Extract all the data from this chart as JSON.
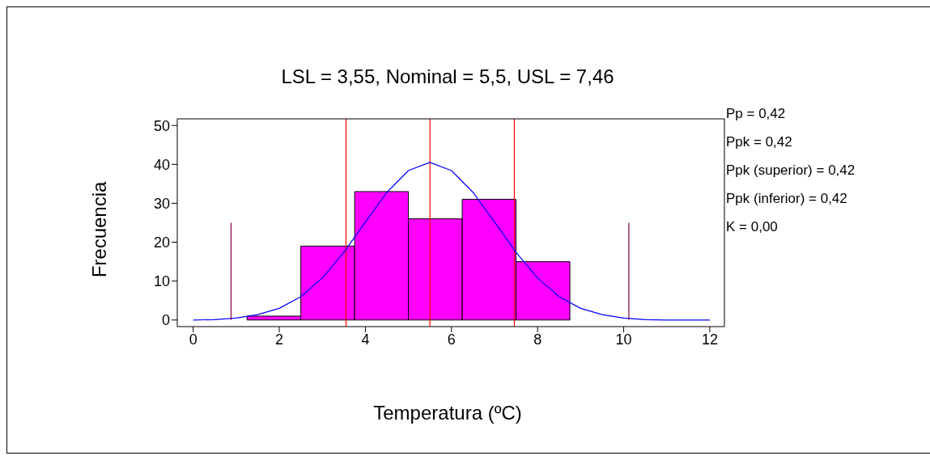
{
  "chart_data": {
    "type": "histogram",
    "title": "LSL = 3,55, Nominal = 5,5, USL = 7,46",
    "xlabel": "Temperatura (ºC)",
    "ylabel": "Frecuencia",
    "bins": [
      1.25,
      2.5,
      3.75,
      5,
      6.25,
      7.5,
      8.75
    ],
    "values": [
      1,
      19,
      33,
      26,
      31,
      15
    ],
    "color": "#ff00ff",
    "series": [
      {
        "type": "line",
        "color": "#0000ff",
        "x": [
          0,
          0.5,
          1,
          1.5,
          2,
          2.5,
          3,
          3.5,
          4,
          4.5,
          5,
          5.5,
          6,
          6.5,
          7,
          7.5,
          8,
          8.5,
          9,
          9.5,
          10,
          10.5,
          11,
          11.5,
          12
        ],
        "values": [
          0,
          0.1,
          0.5,
          1.4,
          3,
          6,
          10.8,
          17.4,
          25.2,
          32.8,
          38.4,
          40.5,
          38.4,
          32.8,
          25.2,
          17.4,
          10.8,
          6,
          3,
          1.4,
          0.5,
          0.1,
          0,
          0,
          0
        ]
      },
      {
        "type": "line",
        "color": "#800040",
        "x": [
          0.88,
          0.88
        ],
        "values": [
          0,
          25
        ]
      },
      {
        "type": "line",
        "color": "#800040",
        "x": [
          10.12,
          10.12
        ],
        "values": [
          0,
          25
        ]
      }
    ],
    "ref_lines": [
      {
        "axis": "x",
        "value": 3.55,
        "color": "#ff0000"
      },
      {
        "axis": "x",
        "value": 5.5,
        "color": "#ff0000"
      },
      {
        "axis": "x",
        "value": 7.46,
        "color": "#ff0000"
      }
    ],
    "xlim": [
      -0.37,
      12.34
    ],
    "xticks": [
      0,
      2,
      4,
      6,
      8,
      10,
      12
    ],
    "ylim": [
      -1.7,
      51.7
    ],
    "yticks": [
      0,
      10,
      20,
      30,
      40,
      50
    ],
    "grid": false,
    "legend": false,
    "annotations": [
      "Pp = 0,42",
      "Ppk = 0,42",
      "Ppk (superior) = 0,42",
      "Ppk (inferior) = 0,42",
      "K = 0,00"
    ]
  }
}
